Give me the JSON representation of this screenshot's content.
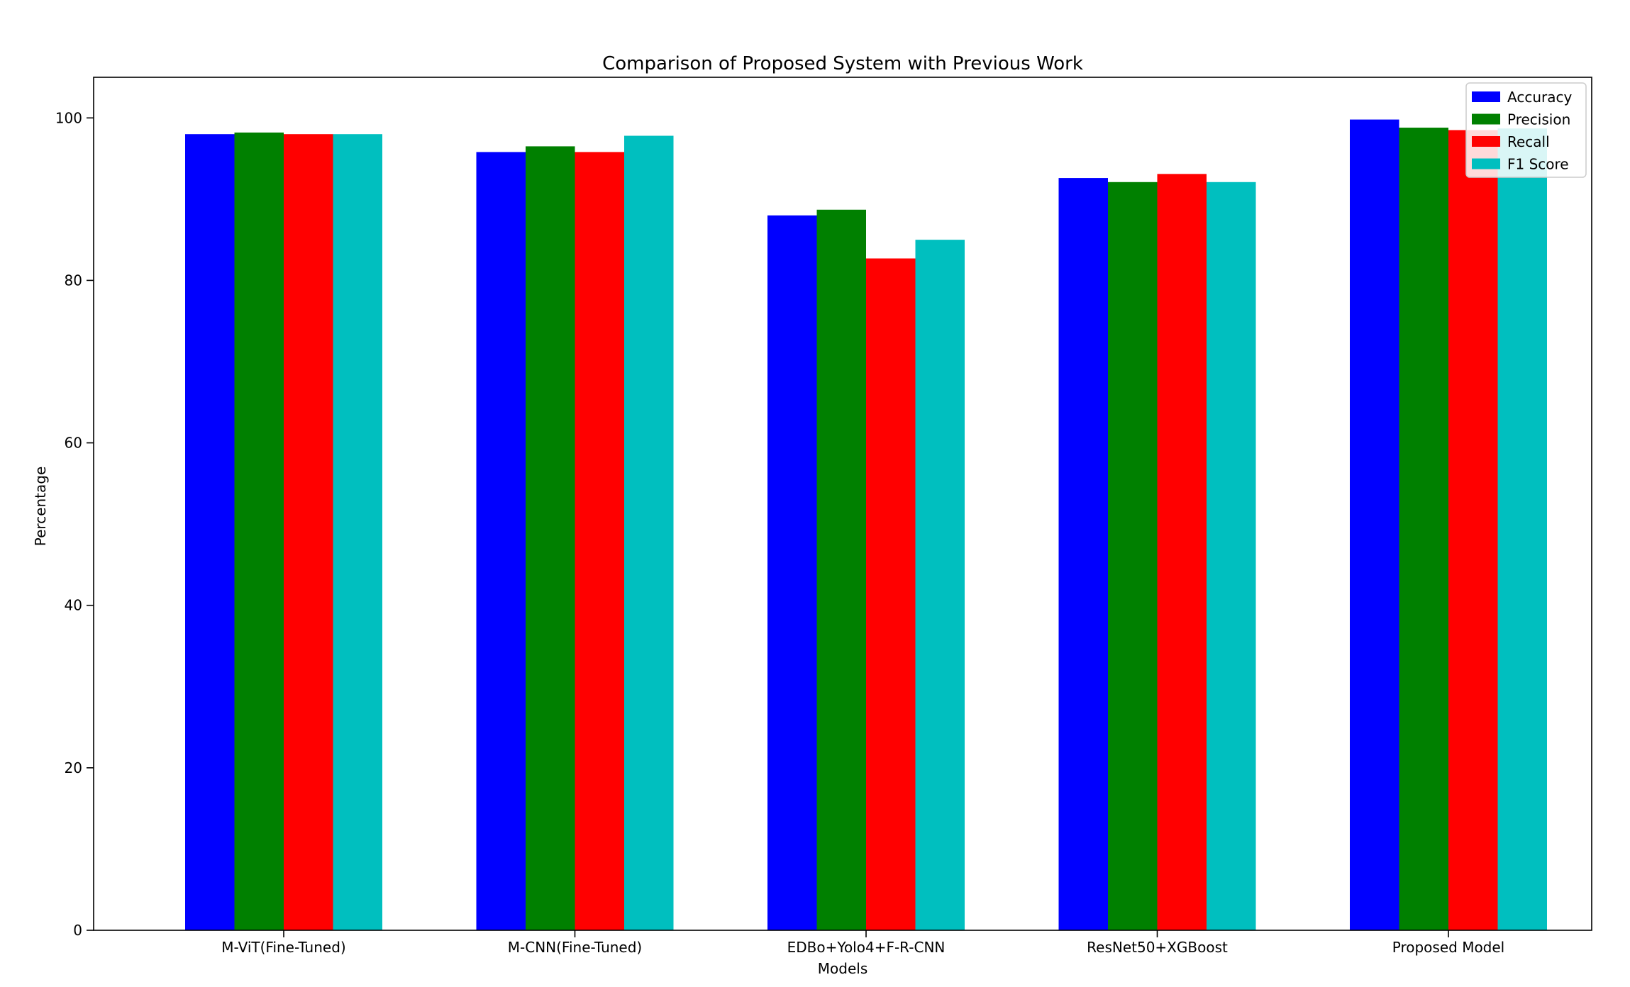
{
  "chart_data": {
    "type": "bar",
    "title": "Comparison of Proposed System with Previous Work",
    "xlabel": "Models",
    "ylabel": "Percentage",
    "ylim": [
      0,
      105
    ],
    "yticks": [
      0,
      20,
      40,
      60,
      80,
      100
    ],
    "categories": [
      "M-ViT(Fine-Tuned)",
      "M-CNN(Fine-Tuned)",
      "EDBo+Yolo4+F-R-CNN",
      "ResNet50+XGBoost",
      "Proposed Model"
    ],
    "series": [
      {
        "name": "Accuracy",
        "color": "#0000ff",
        "values": [
          98.0,
          95.8,
          88.0,
          92.6,
          99.8
        ]
      },
      {
        "name": "Precision",
        "color": "#008000",
        "values": [
          98.2,
          96.5,
          88.7,
          92.1,
          98.8
        ]
      },
      {
        "name": "Recall",
        "color": "#ff0000",
        "values": [
          98.0,
          95.8,
          82.7,
          93.1,
          98.5
        ]
      },
      {
        "name": "F1 Score",
        "color": "#00bfbf",
        "values": [
          98.0,
          97.8,
          85.0,
          92.1,
          98.7
        ]
      }
    ],
    "legend_position": "top-right",
    "grid": false
  }
}
